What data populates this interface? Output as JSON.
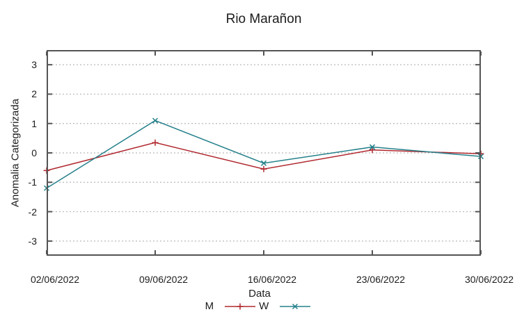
{
  "chart_data": {
    "type": "line",
    "title": "Rio Marañon",
    "xlabel": "Data",
    "ylabel": "Anomalia Categorizada",
    "categories": [
      "02/06/2022",
      "09/06/2022",
      "16/06/2022",
      "23/06/2022",
      "30/06/2022"
    ],
    "series": [
      {
        "name": "M",
        "color": "#b0282e",
        "marker": "plus",
        "values": [
          -0.6,
          0.35,
          -0.55,
          0.1,
          -0.03
        ]
      },
      {
        "name": "W",
        "color": "#24808a",
        "marker": "cross",
        "values": [
          -1.2,
          1.1,
          -0.35,
          0.2,
          -0.12
        ]
      }
    ],
    "ylim": [
      -3.5,
      3.5
    ],
    "yticks": [
      3,
      2,
      1,
      0,
      -1,
      -2,
      -3
    ],
    "grid": "horizontal-dotted",
    "legend_position": "bottom-center",
    "colors": {
      "border": "#545454",
      "gridline": "#b8b8b8",
      "text": "#1c1c1c"
    }
  }
}
